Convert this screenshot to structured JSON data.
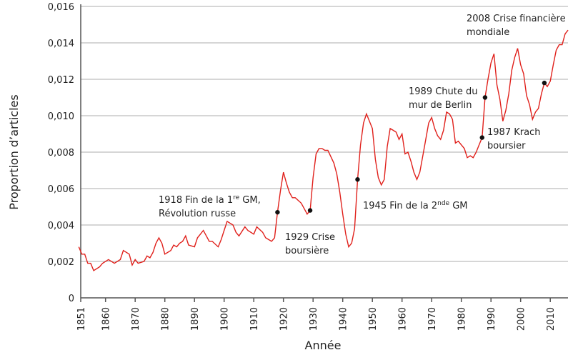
{
  "chart_data": {
    "type": "line",
    "title": "",
    "xlabel": "Année",
    "ylabel": "Proportion d’articles",
    "xlim": [
      1851,
      2016
    ],
    "ylim": [
      0,
      0.016
    ],
    "grid": "horizontal",
    "line_color": "#e0201b",
    "x_ticks": [
      "1851",
      "1860",
      "1870",
      "1880",
      "1890",
      "1900",
      "1910",
      "1920",
      "1930",
      "1940",
      "1950",
      "1960",
      "1970",
      "1980",
      "1990",
      "2000",
      "2010"
    ],
    "y_ticks": [
      "0",
      "0,002",
      "0,004",
      "0,006",
      "0,008",
      "0,010",
      "0,012",
      "0,014",
      "0,016"
    ],
    "series": [
      {
        "x": [
          1851,
          1852,
          1853,
          1854,
          1855,
          1856,
          1858,
          1859,
          1861,
          1863,
          1865,
          1866,
          1868,
          1869,
          1870,
          1871,
          1873,
          1874,
          1875,
          1876,
          1877,
          1878,
          1879,
          1880,
          1882,
          1883,
          1884,
          1885,
          1886,
          1887,
          1888,
          1890,
          1891,
          1892,
          1893,
          1894,
          1895,
          1896,
          1898,
          1899,
          1900,
          1901,
          1903,
          1904,
          1905,
          1907,
          1908,
          1910,
          1911,
          1913,
          1914,
          1916,
          1917,
          1918,
          1919,
          1920,
          1921,
          1922,
          1923,
          1924,
          1926,
          1927,
          1928,
          1929,
          1930,
          1931,
          1932,
          1933,
          1934,
          1935,
          1937,
          1938,
          1939,
          1940,
          1941,
          1942,
          1943,
          1944,
          1945,
          1946,
          1947,
          1948,
          1950,
          1951,
          1952,
          1953,
          1954,
          1955,
          1956,
          1957,
          1958,
          1959,
          1960,
          1961,
          1962,
          1963,
          1964,
          1965,
          1966,
          1967,
          1968,
          1969,
          1970,
          1971,
          1972,
          1973,
          1974,
          1975,
          1976,
          1977,
          1978,
          1979,
          1980,
          1981,
          1982,
          1983,
          1984,
          1985,
          1986,
          1987,
          1988,
          1989,
          1990,
          1991,
          1992,
          1993,
          1994,
          1995,
          1996,
          1997,
          1998,
          1999,
          2000,
          2001,
          2002,
          2003,
          2004,
          2005,
          2006,
          2007,
          2008,
          2009,
          2010,
          2011,
          2012,
          2013,
          2014,
          2015,
          2016
        ],
        "y": [
          0.0028,
          0.0024,
          0.0024,
          0.0019,
          0.0019,
          0.0015,
          0.0017,
          0.0019,
          0.0021,
          0.0019,
          0.0021,
          0.0026,
          0.0024,
          0.0018,
          0.0021,
          0.0019,
          0.002,
          0.0023,
          0.0022,
          0.0025,
          0.003,
          0.0033,
          0.003,
          0.0024,
          0.0026,
          0.0029,
          0.0028,
          0.003,
          0.0031,
          0.0034,
          0.0029,
          0.0028,
          0.0033,
          0.0035,
          0.0037,
          0.0034,
          0.0031,
          0.0031,
          0.0028,
          0.0032,
          0.0037,
          0.0042,
          0.004,
          0.0036,
          0.0034,
          0.0039,
          0.0037,
          0.0035,
          0.0039,
          0.0036,
          0.0033,
          0.0031,
          0.0033,
          0.0047,
          0.0059,
          0.0069,
          0.0063,
          0.0058,
          0.0055,
          0.0055,
          0.0052,
          0.0049,
          0.0046,
          0.0048,
          0.0066,
          0.0079,
          0.0082,
          0.0082,
          0.0081,
          0.0081,
          0.0074,
          0.0068,
          0.0058,
          0.0046,
          0.0035,
          0.0028,
          0.003,
          0.0038,
          0.0065,
          0.0084,
          0.0096,
          0.0101,
          0.0093,
          0.0076,
          0.0066,
          0.0062,
          0.0065,
          0.0083,
          0.0093,
          0.0092,
          0.0091,
          0.0087,
          0.009,
          0.0079,
          0.008,
          0.0075,
          0.0069,
          0.0065,
          0.0069,
          0.0078,
          0.0087,
          0.0096,
          0.0099,
          0.0093,
          0.0089,
          0.0087,
          0.0092,
          0.0102,
          0.0101,
          0.0098,
          0.0085,
          0.0086,
          0.0084,
          0.0082,
          0.0077,
          0.0078,
          0.0077,
          0.008,
          0.0084,
          0.0088,
          0.011,
          0.012,
          0.0129,
          0.0134,
          0.0117,
          0.0109,
          0.0097,
          0.0103,
          0.0112,
          0.0125,
          0.0132,
          0.0137,
          0.0128,
          0.0123,
          0.0111,
          0.0106,
          0.0098,
          0.0102,
          0.0104,
          0.0112,
          0.0118,
          0.0116,
          0.0119,
          0.0128,
          0.0136,
          0.0139,
          0.0139,
          0.0145,
          0.0147
        ]
      }
    ],
    "annotations": [
      {
        "year": 1918,
        "y": 0.0047,
        "lines": [
          "1918 Fin de la 1",
          "re",
          " GM,",
          "Révolution russe"
        ]
      },
      {
        "year": 1929,
        "y": 0.0048,
        "lines": [
          "1929 Crise",
          "boursière"
        ]
      },
      {
        "year": 1945,
        "y": 0.0065,
        "lines": [
          "1945 Fin de la 2",
          "nde",
          " GM"
        ]
      },
      {
        "year": 1987,
        "y": 0.0088,
        "lines": [
          "1987 Krach",
          "boursier"
        ]
      },
      {
        "year": 1988,
        "y": 0.011,
        "lines": [
          "1989 Chute du",
          "mur de Berlin"
        ]
      },
      {
        "year": 2008,
        "y": 0.0118,
        "lines": [
          "2008 Crise financière",
          "mondiale"
        ]
      }
    ]
  }
}
